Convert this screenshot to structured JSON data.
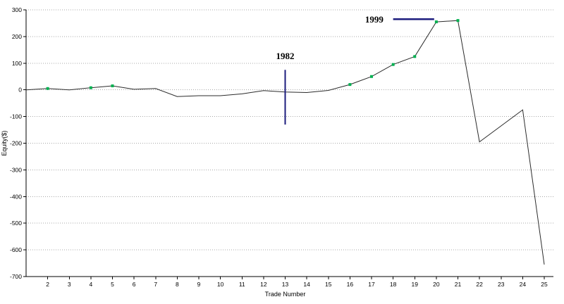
{
  "chart_data": {
    "type": "line",
    "title": "",
    "xlabel": "Trade Number",
    "ylabel": "Equity($)",
    "xlim": [
      1,
      25
    ],
    "ylim": [
      -700,
      300
    ],
    "ytick_step": 100,
    "ytick_labels": [
      "300",
      "200",
      "100",
      "0",
      "-100",
      "-200",
      "-300",
      "-400",
      "-500",
      "-600",
      "-700"
    ],
    "xtick_labels": [
      "2",
      "3",
      "4",
      "5",
      "6",
      "7",
      "8",
      "9",
      "10",
      "11",
      "12",
      "13",
      "14",
      "15",
      "16",
      "17",
      "18",
      "19",
      "20",
      "21",
      "22",
      "23",
      "24",
      "25"
    ],
    "x": [
      1,
      2,
      3,
      4,
      5,
      6,
      7,
      8,
      9,
      10,
      11,
      12,
      13,
      14,
      15,
      16,
      17,
      18,
      19,
      20,
      21,
      22,
      23,
      24,
      25
    ],
    "values": [
      0,
      5,
      0,
      8,
      15,
      2,
      5,
      -25,
      -22,
      -22,
      -15,
      -3,
      -8,
      -10,
      -2,
      20,
      50,
      95,
      125,
      255,
      260,
      -195,
      -135,
      -75,
      -655
    ],
    "winning_trades": [
      2,
      4,
      5,
      16,
      17,
      18,
      19,
      20,
      21
    ],
    "grid": true,
    "legend": "none",
    "annotations": [
      {
        "label": "1982",
        "type": "vline",
        "x": 13,
        "y_from": -130,
        "y_to": 75,
        "label_x": 13,
        "label_y": 115
      },
      {
        "label": "1999",
        "type": "hline",
        "y": 265,
        "x_from": 18,
        "x_to": 19.9,
        "label_x": 17.55,
        "label_y": 255
      }
    ],
    "colors": {
      "line": "#2b2b2b",
      "marker": "#00b050",
      "annotation": "#1c1c7e",
      "grid": "#a8a8a8",
      "axis": "#000000",
      "background": "#ffffff"
    }
  }
}
